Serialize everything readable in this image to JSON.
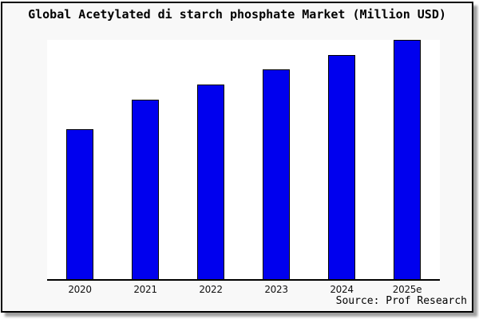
{
  "title": "Global Acetylated di starch phosphate Market (Million USD)",
  "source_note": "Source: Prof Research",
  "colors": {
    "bar_fill": "#0000EE",
    "bar_border": "#000000",
    "axis": "#000000",
    "frame_background": "#F8F8F8",
    "plot_background": "#FFFFFF",
    "frame_border": "#000000"
  },
  "chart_data": {
    "type": "bar",
    "title": "Global Acetylated di starch phosphate Market (Million USD)",
    "categories": [
      "2020",
      "2021",
      "2022",
      "2023",
      "2024",
      "2025e"
    ],
    "values": [
      62.7,
      75.0,
      81.3,
      87.7,
      93.7,
      100.0
    ],
    "xlabel": "",
    "ylabel": "",
    "ylim": [
      0,
      100
    ],
    "y_axis_visible": false,
    "grid": false,
    "legend": false,
    "value_note": "No y-axis or data labels shown; values are relative bar heights indexed to 2025e = 100"
  }
}
